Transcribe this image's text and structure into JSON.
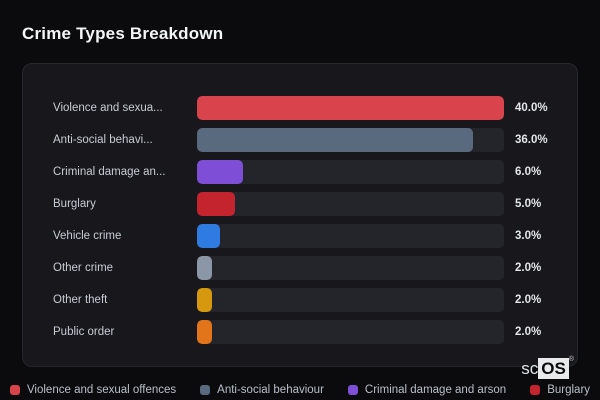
{
  "page": {
    "title": "Crime Types Breakdown",
    "background": "#0b0b0e",
    "panel_background": "#17171c",
    "panel_border": "#26262d",
    "track_color": "#24242b"
  },
  "logo": {
    "prefix": "sc",
    "suffix": "OS",
    "registered": "®"
  },
  "chart_data": {
    "type": "bar",
    "orientation": "horizontal",
    "title": "Crime Types Breakdown",
    "categories": [
      "Violence and sexual offences",
      "Anti-social behaviour",
      "Criminal damage and arson",
      "Burglary",
      "Vehicle crime",
      "Other crime",
      "Other theft",
      "Public order"
    ],
    "display_labels": [
      "Violence and sexua...",
      "Anti-social behavi...",
      "Criminal damage an...",
      "Burglary",
      "Vehicle crime",
      "Other crime",
      "Other theft",
      "Public order"
    ],
    "values": [
      40.0,
      36.0,
      6.0,
      5.0,
      3.0,
      2.0,
      2.0,
      2.0
    ],
    "value_labels": [
      "40.0%",
      "36.0%",
      "6.0%",
      "5.0%",
      "3.0%",
      "2.0%",
      "2.0%",
      "2.0%"
    ],
    "bar_colors": [
      "#d8434c",
      "#5a6a7e",
      "#7e4fd6",
      "#c4242e",
      "#2e7be2",
      "#8b97a6",
      "#d6980f",
      "#e2741a"
    ],
    "xlim": [
      0,
      40
    ],
    "grid": false,
    "legend_position": "bottom",
    "legend": [
      {
        "label": "Violence and sexual offences",
        "color": "#d8434c"
      },
      {
        "label": "Anti-social behaviour",
        "color": "#5a6a7e"
      },
      {
        "label": "Criminal damage and arson",
        "color": "#7e4fd6"
      },
      {
        "label": "Burglary",
        "color": "#c4242e"
      }
    ]
  }
}
